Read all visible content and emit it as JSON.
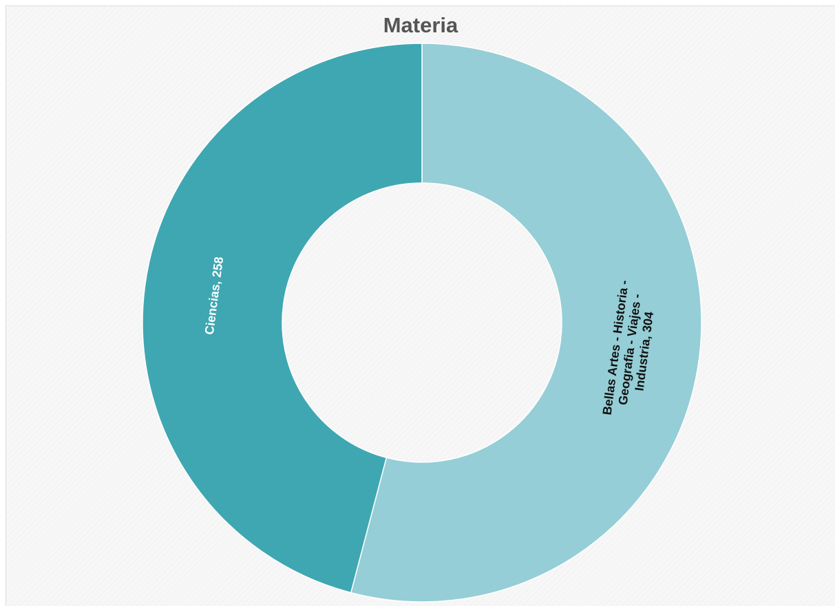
{
  "chart_data": {
    "type": "pie",
    "variant": "donut",
    "title": "Materia",
    "slices": [
      {
        "label": "Bellas Artes - Historia - Geografia - Viajes - Industria",
        "value": 304,
        "color": "#95ced6",
        "text_color": "#111111"
      },
      {
        "label": "Ciencias",
        "value": 258,
        "color": "#3fa7b2",
        "text_color": "#ffffff"
      }
    ],
    "start": "top",
    "direction": "clockwise",
    "legend": "none",
    "data_labels": "inside"
  }
}
